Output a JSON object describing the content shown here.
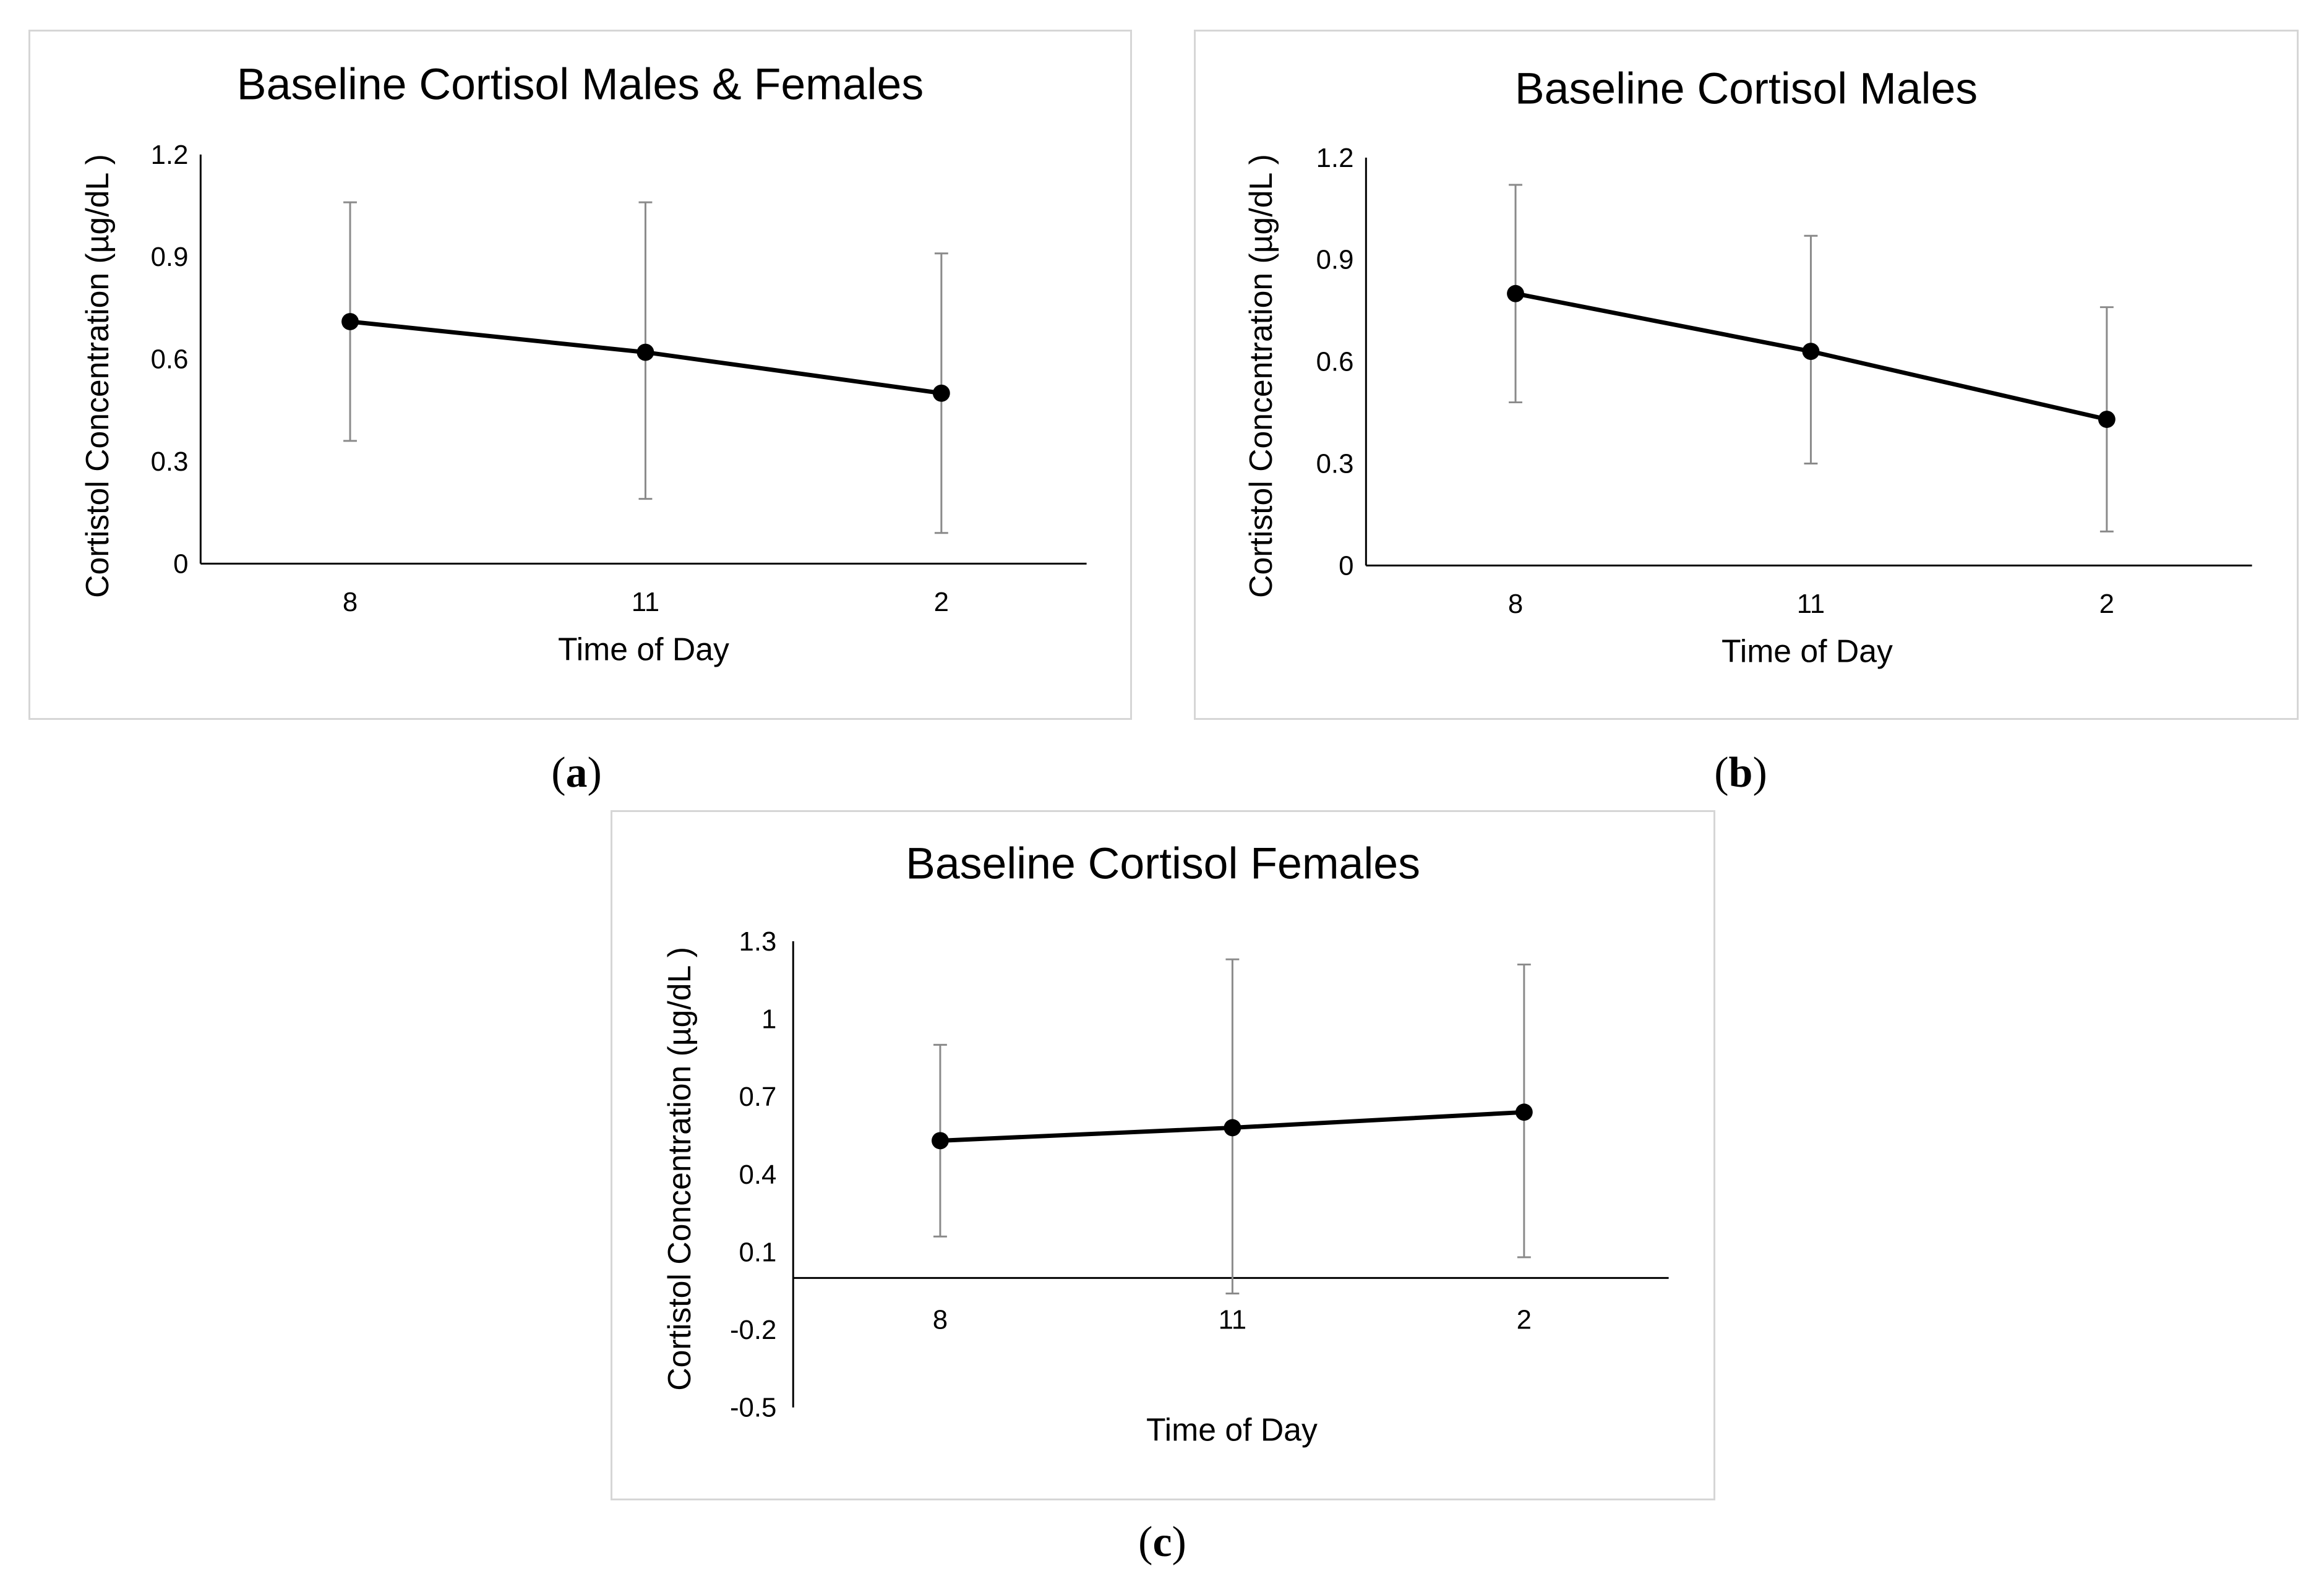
{
  "chart_data": [
    {
      "id": "a",
      "type": "line",
      "title": "Baseline Cortisol Males & Females",
      "xlabel": "Time of Day",
      "ylabel": "Cortistol Concentration (µg/dL )",
      "categories": [
        "8",
        "11",
        "2"
      ],
      "values": [
        0.71,
        0.62,
        0.5
      ],
      "error_low": [
        0.36,
        0.19,
        0.09
      ],
      "error_high": [
        1.06,
        1.06,
        0.91
      ],
      "yticks": [
        "0",
        "0.3",
        "0.6",
        "0.9",
        "1.2"
      ],
      "ylim": [
        0,
        1.2
      ],
      "grid": false,
      "caption": "a"
    },
    {
      "id": "b",
      "type": "line",
      "title": "Baseline Cortisol Males",
      "xlabel": "Time of Day",
      "ylabel": "Cortistol Concentration (µg/dL )",
      "categories": [
        "8",
        "11",
        "2"
      ],
      "values": [
        0.8,
        0.63,
        0.43
      ],
      "error_low": [
        0.48,
        0.3,
        0.1
      ],
      "error_high": [
        1.12,
        0.97,
        0.76
      ],
      "yticks": [
        "0",
        "0.3",
        "0.6",
        "0.9",
        "1.2"
      ],
      "ylim": [
        0,
        1.2
      ],
      "grid": false,
      "caption": "b"
    },
    {
      "id": "c",
      "type": "line",
      "title": "Baseline Cortisol Females",
      "xlabel": "Time of Day",
      "ylabel": "Cortistol Concentration (µg/dL )",
      "categories": [
        "8",
        "11",
        "2"
      ],
      "values": [
        0.53,
        0.58,
        0.64
      ],
      "error_low": [
        0.16,
        -0.06,
        0.08
      ],
      "error_high": [
        0.9,
        1.23,
        1.21
      ],
      "yticks": [
        "-0.5",
        "-0.2",
        "0.1",
        "0.4",
        "0.7",
        "1",
        "1.3"
      ],
      "ylim": [
        -0.5,
        1.3
      ],
      "xaxis_at": 0,
      "grid": false,
      "caption": "c"
    }
  ]
}
